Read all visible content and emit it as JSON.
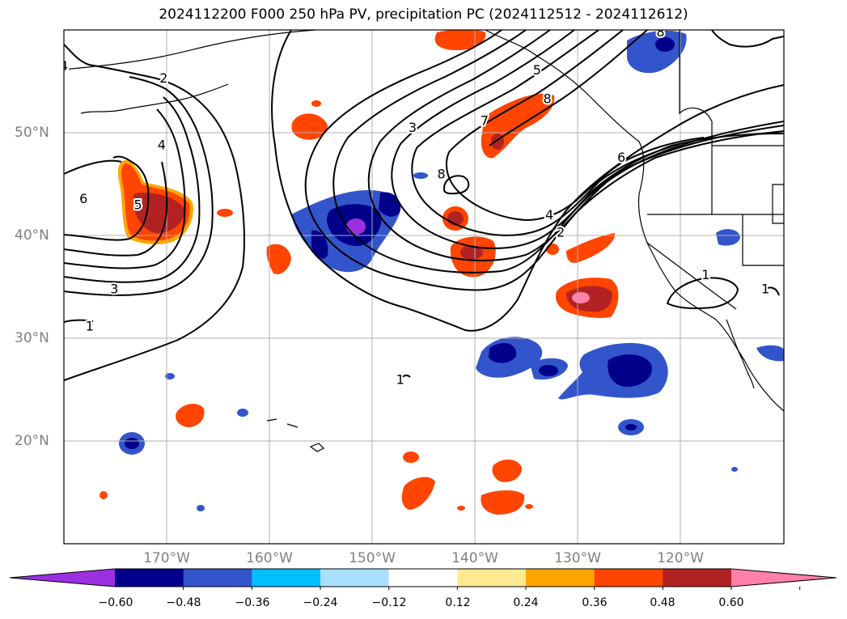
{
  "title": "2024112200 F000 250 hPa PV, precipitation PC (2024112512 - 2024112612)",
  "map": {
    "lon_range": [
      -180,
      -110
    ],
    "lat_range": [
      10,
      60
    ],
    "lon_ticks": [
      {
        "value": -170,
        "label": "170°W"
      },
      {
        "value": -160,
        "label": "160°W"
      },
      {
        "value": -150,
        "label": "150°W"
      },
      {
        "value": -140,
        "label": "140°W"
      },
      {
        "value": -130,
        "label": "130°W"
      },
      {
        "value": -120,
        "label": "120°W"
      }
    ],
    "lat_ticks": [
      {
        "value": 50,
        "label": "50°N"
      },
      {
        "value": 40,
        "label": "40°N"
      },
      {
        "value": 30,
        "label": "30°N"
      },
      {
        "value": 20,
        "label": "20°N"
      }
    ],
    "grid": true,
    "contour_variable": "250 hPa PV",
    "contour_labels": [
      {
        "text": "2",
        "lon": -170.3,
        "lat": 55.3
      },
      {
        "text": "4",
        "lon": -170.5,
        "lat": 48.8
      },
      {
        "text": "5",
        "lon": -172.8,
        "lat": 43.0
      },
      {
        "text": "6",
        "lon": -178.1,
        "lat": 43.6
      },
      {
        "text": "3",
        "lon": -175.1,
        "lat": 34.8
      },
      {
        "text": "1",
        "lon": -177.5,
        "lat": 31.2
      },
      {
        "text": "3",
        "lon": -146.1,
        "lat": 50.5
      },
      {
        "text": "7",
        "lon": -139.1,
        "lat": 51.2
      },
      {
        "text": "5",
        "lon": -134.0,
        "lat": 56.1
      },
      {
        "text": "8",
        "lon": -133.0,
        "lat": 53.3
      },
      {
        "text": "8",
        "lon": -143.3,
        "lat": 46.0
      },
      {
        "text": "6",
        "lon": -125.8,
        "lat": 47.6
      },
      {
        "text": "4",
        "lon": -132.8,
        "lat": 42.0
      },
      {
        "text": "2",
        "lon": -131.7,
        "lat": 40.3
      },
      {
        "text": "1",
        "lon": -117.6,
        "lat": 36.2
      },
      {
        "text": "1",
        "lon": -147.3,
        "lat": 26.0
      },
      {
        "text": "4",
        "lon": -180.0,
        "lat": 56.5
      },
      {
        "text": "8",
        "lon": -122.0,
        "lat": 59.8
      },
      {
        "text": "1",
        "lon": -111.8,
        "lat": 34.8
      }
    ],
    "shaded_variable": "precipitation PC",
    "colors": {
      "land_outline": "#000000",
      "grid": "#b0b0b0",
      "contour": "#000000"
    }
  },
  "colorbar": {
    "colors": [
      "#9b30e0",
      "#00008b",
      "#3355cc",
      "#00bfff",
      "#a8e0ff",
      "#ffffff",
      "#ffe991",
      "#ffa500",
      "#ff4500",
      "#b22222",
      "#ff80a8"
    ],
    "ticks": [
      "−0.60",
      "−0.48",
      "−0.36",
      "−0.24",
      "−0.12",
      "0.12",
      "0.24",
      "0.36",
      "0.48",
      "0.60"
    ],
    "extend": "both"
  }
}
